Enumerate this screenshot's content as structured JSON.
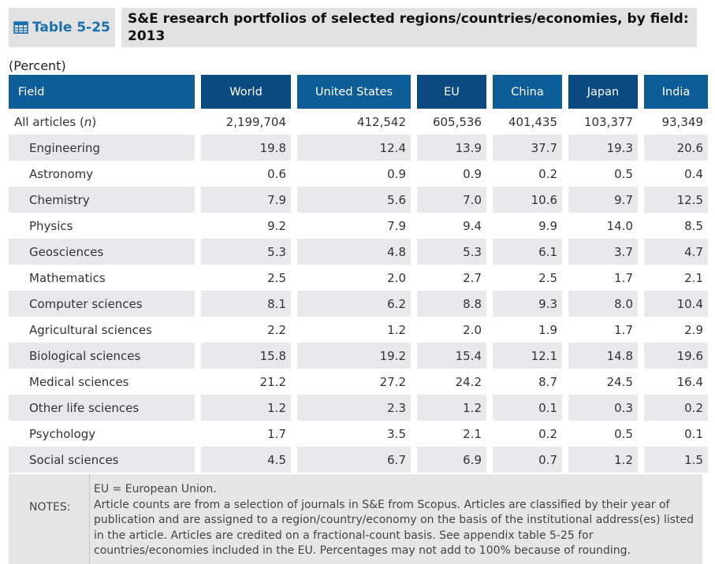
{
  "header": {
    "table_tag": "Table 5-25",
    "title": "S&E research portfolios of selected regions/countries/economies, by field: 2013",
    "units": "(Percent)"
  },
  "table": {
    "columns": [
      "Field",
      "World",
      "United States",
      "EU",
      "China",
      "Japan",
      "India"
    ],
    "all_articles": {
      "label_prefix": "All articles (",
      "label_n": "n",
      "label_suffix": ")",
      "values": [
        "2,199,704",
        "412,542",
        "605,536",
        "401,435",
        "103,377",
        "93,349"
      ]
    },
    "rows": [
      {
        "field": "Engineering",
        "values": [
          "19.8",
          "12.4",
          "13.9",
          "37.7",
          "19.3",
          "20.6"
        ]
      },
      {
        "field": "Astronomy",
        "values": [
          "0.6",
          "0.9",
          "0.9",
          "0.2",
          "0.5",
          "0.4"
        ]
      },
      {
        "field": "Chemistry",
        "values": [
          "7.9",
          "5.6",
          "7.0",
          "10.6",
          "9.7",
          "12.5"
        ]
      },
      {
        "field": "Physics",
        "values": [
          "9.2",
          "7.9",
          "9.4",
          "9.9",
          "14.0",
          "8.5"
        ]
      },
      {
        "field": "Geosciences",
        "values": [
          "5.3",
          "4.8",
          "5.3",
          "6.1",
          "3.7",
          "4.7"
        ]
      },
      {
        "field": "Mathematics",
        "values": [
          "2.5",
          "2.0",
          "2.7",
          "2.5",
          "1.7",
          "2.1"
        ]
      },
      {
        "field": "Computer sciences",
        "values": [
          "8.1",
          "6.2",
          "8.8",
          "9.3",
          "8.0",
          "10.4"
        ]
      },
      {
        "field": "Agricultural sciences",
        "values": [
          "2.2",
          "1.2",
          "2.0",
          "1.9",
          "1.7",
          "2.9"
        ]
      },
      {
        "field": "Biological sciences",
        "values": [
          "15.8",
          "19.2",
          "15.4",
          "12.1",
          "14.8",
          "19.6"
        ]
      },
      {
        "field": "Medical sciences",
        "values": [
          "21.2",
          "27.2",
          "24.2",
          "8.7",
          "24.5",
          "16.4"
        ]
      },
      {
        "field": "Other life sciences",
        "values": [
          "1.2",
          "2.3",
          "1.2",
          "0.1",
          "0.3",
          "0.2"
        ]
      },
      {
        "field": "Psychology",
        "values": [
          "1.7",
          "3.5",
          "2.1",
          "0.2",
          "0.5",
          "0.1"
        ]
      },
      {
        "field": "Social sciences",
        "values": [
          "4.5",
          "6.7",
          "6.9",
          "0.7",
          "1.2",
          "1.5"
        ]
      }
    ]
  },
  "notes": {
    "label": "NOTES:",
    "lines": [
      "EU = European Union.",
      "Article counts are from a selection of journals in S&E from Scopus. Articles are classified by their year of publication and are assigned to a region/country/economy on the basis of the institutional address(es) listed in the article. Articles are credited on a fractional-count basis. See appendix table 5-25 for countries/economies included in the EU. Percentages may not add to 100% because of rounding."
    ]
  },
  "colors": {
    "header_blue": "#0d5d98",
    "header_blue_dark": "#0a4a80",
    "tag_text": "#1a6fae",
    "stripe": "#e9e9eb"
  }
}
